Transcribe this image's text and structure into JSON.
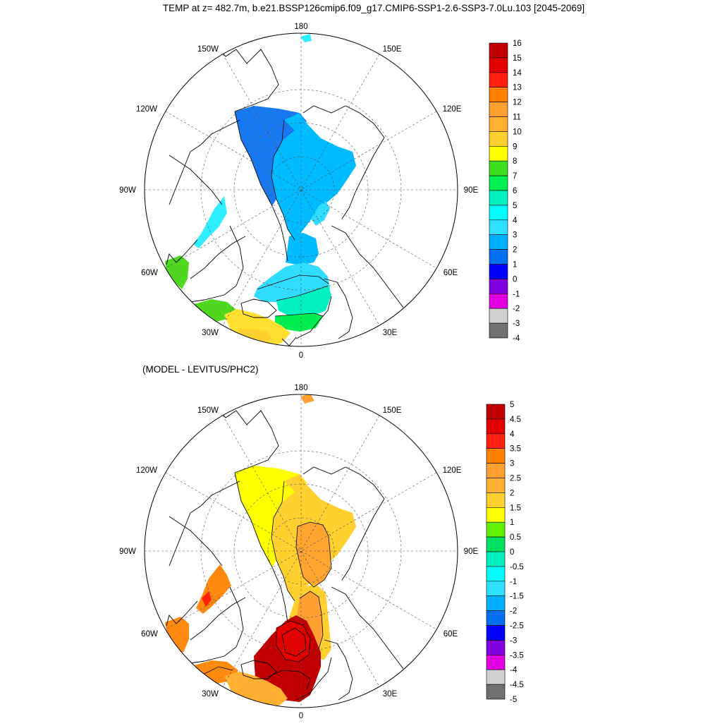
{
  "figure": {
    "title": "TEMP at z= 482.7m, b.e21.BSSP126cmip6.f09_g17.CMIP6-SSP1-2.6-SSP3-7.0Lu.103 [2045-2069]"
  },
  "panels": [
    {
      "id": "model",
      "subtitle": "",
      "longitude_labels": [
        "180",
        "150E",
        "120E",
        "90E",
        "60E",
        "30E",
        "0",
        "30W",
        "60W",
        "90W",
        "120W",
        "150W"
      ],
      "colorbar": {
        "labels": [
          "16",
          "15",
          "14",
          "13",
          "12",
          "11",
          "10",
          "9",
          "8",
          "7",
          "6",
          "5",
          "4",
          "3",
          "2",
          "1",
          "0",
          "-1",
          "-2",
          "-3",
          "-4"
        ],
        "colors": [
          "#c00000",
          "#e00000",
          "#ff2010",
          "#ff8000",
          "#ffa030",
          "#ffb030",
          "#ffd030",
          "#ffff00",
          "#40e020",
          "#00f050",
          "#00f0c0",
          "#00ffff",
          "#30e0ff",
          "#00b0ff",
          "#0070f0",
          "#0000ff",
          "#8000e0",
          "#e000e0",
          "#d0d0d0",
          "#707070"
        ]
      }
    },
    {
      "id": "difference",
      "subtitle": "(MODEL - LEVITUS/PHC2)",
      "longitude_labels": [
        "180",
        "150E",
        "120E",
        "90E",
        "60E",
        "30E",
        "0",
        "30W",
        "60W",
        "90W",
        "120W",
        "150W"
      ],
      "colorbar": {
        "labels": [
          "5",
          "4.5",
          "4",
          "3.5",
          "3",
          "2.5",
          "2",
          "1.5",
          "1",
          "0.5",
          "0",
          "-0.5",
          "-1",
          "-1.5",
          "-2",
          "-2.5",
          "-3",
          "-3.5",
          "-4",
          "-4.5",
          "-5"
        ],
        "colors": [
          "#c00000",
          "#e00000",
          "#ff2010",
          "#ff8000",
          "#ffa030",
          "#ffb030",
          "#ffd030",
          "#ffff00",
          "#60f000",
          "#00e060",
          "#00f0c0",
          "#00ffff",
          "#30e0ff",
          "#00b0ff",
          "#0070f0",
          "#0000ff",
          "#8000e0",
          "#e000e0",
          "#d0d0d0",
          "#707070"
        ]
      }
    }
  ]
}
